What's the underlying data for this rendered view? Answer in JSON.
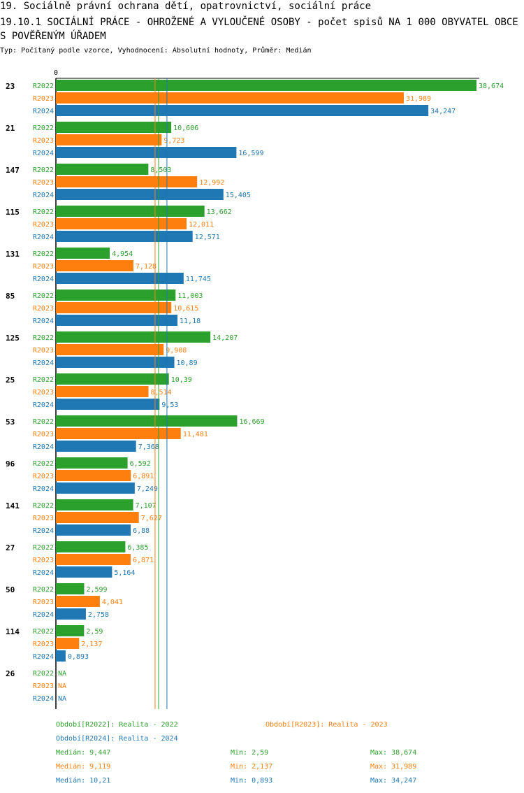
{
  "header": {
    "line1": "19. Sociálně právní ochrana dětí, opatrovnictví, sociální práce",
    "line2": "19.10.1 SOCIÁLNÍ PRÁCE - OHROŽENÉ A VYLOUČENÉ OSOBY - počet spisů NA 1 000 OBYVATEL OBCE S POVĚŘENÝM ÚŘADEM",
    "line3": "Typ: Počítaný podle vzorce, Vyhodnocení: Absolutní hodnoty, Průměr: Medián"
  },
  "chart_data": {
    "type": "bar",
    "orientation": "horizontal",
    "axis_zero_label": "0",
    "xlim": [
      0,
      38.674
    ],
    "categories": [
      "23",
      "21",
      "147",
      "115",
      "131",
      "85",
      "125",
      "25",
      "53",
      "96",
      "141",
      "27",
      "50",
      "114",
      "26"
    ],
    "series": [
      {
        "name": "R2022",
        "color": "#2ca02c",
        "values": [
          38.674,
          10.606,
          8.503,
          13.662,
          4.954,
          11.003,
          14.207,
          10.39,
          16.669,
          6.592,
          7.107,
          6.385,
          2.599,
          2.59,
          null
        ],
        "labels": [
          "38,674",
          "10,606",
          "8,503",
          "13,662",
          "4,954",
          "11,003",
          "14,207",
          "10,39",
          "16,669",
          "6,592",
          "7,107",
          "6,385",
          "2,599",
          "2,59",
          "NA"
        ]
      },
      {
        "name": "R2023",
        "color": "#ff7f0e",
        "values": [
          31.989,
          9.723,
          12.992,
          12.011,
          7.128,
          10.615,
          9.908,
          8.514,
          11.481,
          6.891,
          7.627,
          6.871,
          4.041,
          2.137,
          null
        ],
        "labels": [
          "31,989",
          "9,723",
          "12,992",
          "12,011",
          "7,128",
          "10,615",
          "9,908",
          "8,514",
          "11,481",
          "6,891",
          "7,627",
          "6,871",
          "4,041",
          "2,137",
          "NA"
        ]
      },
      {
        "name": "R2024",
        "color": "#1f77b4",
        "values": [
          34.247,
          16.599,
          15.405,
          12.571,
          11.745,
          11.18,
          10.89,
          9.53,
          7.368,
          7.249,
          6.88,
          5.164,
          2.758,
          0.893,
          null
        ],
        "labels": [
          "34,247",
          "16,599",
          "15,405",
          "12,571",
          "11,745",
          "11,18",
          "10,89",
          "9,53",
          "7,368",
          "7,249",
          "6,88",
          "5,164",
          "2,758",
          "0,893",
          "NA"
        ]
      }
    ],
    "medians": [
      9.447,
      9.119,
      10.21
    ]
  },
  "legend": {
    "periods": [
      {
        "text": "Období[R2022]: Realita - 2022",
        "color": "#2ca02c"
      },
      {
        "text": "Období[R2023]: Realita - 2023",
        "color": "#ff7f0e"
      },
      {
        "text": "Období[R2024]: Realita - 2024",
        "color": "#1f77b4"
      }
    ],
    "stats": [
      {
        "median": "Medián: 9,447",
        "min": "Min: 2,59",
        "max": "Max: 38,674",
        "color": "#2ca02c"
      },
      {
        "median": "Medián: 9,119",
        "min": "Min: 2,137",
        "max": "Max: 31,989",
        "color": "#ff7f0e"
      },
      {
        "median": "Medián: 10,21",
        "min": "Min: 0,893",
        "max": "Max: 34,247",
        "color": "#1f77b4"
      }
    ]
  }
}
